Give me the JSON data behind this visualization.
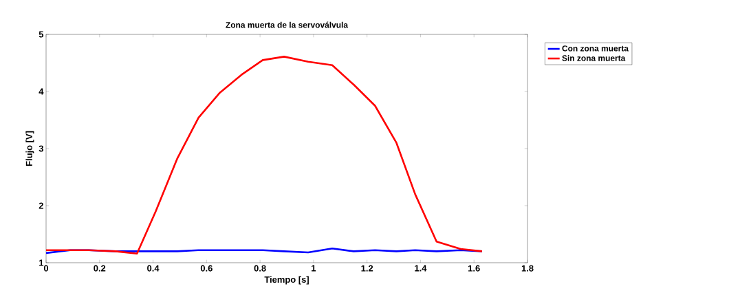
{
  "chart_data": {
    "type": "line",
    "title": "Zona muerta de la servoválvula",
    "xlabel": "Tiempo [s]",
    "ylabel": "Flujo [V]",
    "xlim": [
      0,
      1.8
    ],
    "ylim": [
      1,
      5
    ],
    "xticks": [
      0,
      0.2,
      0.4,
      0.6,
      0.8,
      1,
      1.2,
      1.4,
      1.6,
      1.8
    ],
    "yticks": [
      1,
      2,
      3,
      4,
      5
    ],
    "x": [
      0,
      0.09,
      0.16,
      0.26,
      0.34,
      0.41,
      0.49,
      0.57,
      0.65,
      0.73,
      0.81,
      0.89,
      0.98,
      1.07,
      1.15,
      1.23,
      1.31,
      1.38,
      1.46,
      1.55,
      1.63
    ],
    "legend": "top right",
    "grid": false,
    "series": [
      {
        "name": "Con zona muerta",
        "color": "#0000ff",
        "values": [
          1.17,
          1.22,
          1.22,
          1.2,
          1.2,
          1.2,
          1.2,
          1.22,
          1.22,
          1.22,
          1.22,
          1.2,
          1.18,
          1.25,
          1.2,
          1.22,
          1.2,
          1.22,
          1.2,
          1.22,
          1.2
        ]
      },
      {
        "name": "Sin zona muerta",
        "color": "#ff0000",
        "values": [
          1.22,
          1.22,
          1.22,
          1.2,
          1.16,
          1.9,
          2.82,
          3.54,
          3.98,
          4.29,
          4.55,
          4.61,
          4.52,
          4.46,
          4.12,
          3.75,
          3.1,
          2.2,
          1.37,
          1.24,
          1.2
        ]
      }
    ]
  }
}
